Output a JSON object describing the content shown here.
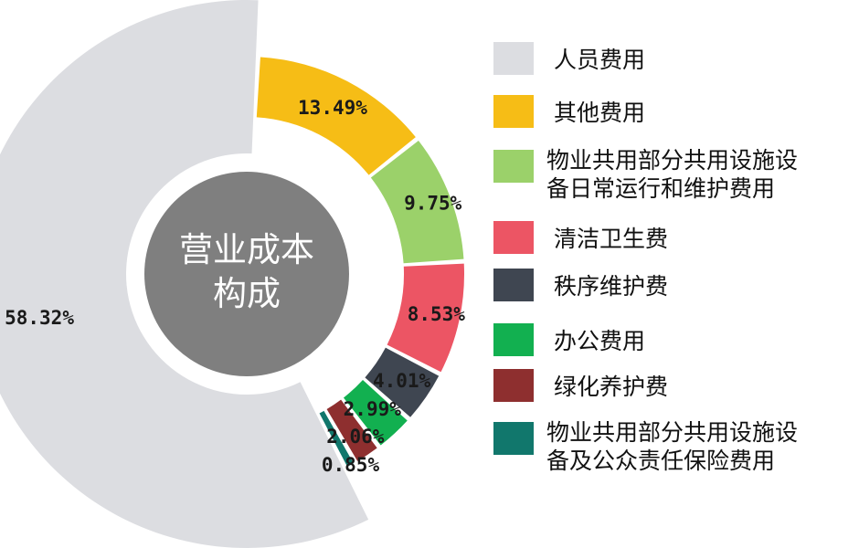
{
  "chart_data": {
    "type": "pie",
    "style": "donut",
    "center_label": [
      "营业成本",
      "构成"
    ],
    "slices": [
      {
        "label": "人员费用",
        "value": 58.32,
        "display": "58.32%",
        "color": "#dcdde1"
      },
      {
        "label": "其他费用",
        "value": 13.49,
        "display": "13.49%",
        "color": "#f6bd16"
      },
      {
        "label": "物业共用部分共用设施设备日常运行和维护费用",
        "legend_lines": [
          "物业共用部分共用设施设",
          "备日常运行和维护费用"
        ],
        "value": 9.75,
        "display": "9.75%",
        "color": "#9bd16a"
      },
      {
        "label": "清洁卫生费",
        "value": 8.53,
        "display": "8.53%",
        "color": "#ec5564"
      },
      {
        "label": "秩序维护费",
        "value": 4.01,
        "display": "4.01%",
        "color": "#3f4651"
      },
      {
        "label": "办公费用",
        "value": 2.99,
        "display": "2.99%",
        "color": "#12b050"
      },
      {
        "label": "绿化养护费",
        "value": 2.06,
        "display": "2.06%",
        "color": "#8e2f2f"
      },
      {
        "label": "物业共用部分共用设施设备及公众责任保险费用",
        "legend_lines": [
          "物业共用部分共用设施设",
          "备及公众责任保险费用"
        ],
        "value": 0.85,
        "display": "0.85%",
        "color": "#11776c"
      }
    ],
    "legend_position": "right"
  }
}
